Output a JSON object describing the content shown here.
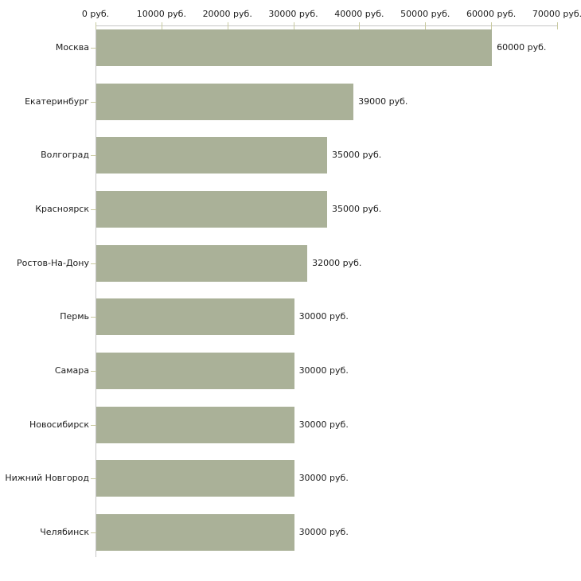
{
  "chart_data": {
    "type": "bar",
    "orientation": "horizontal",
    "title": "",
    "xlabel": "",
    "ylabel": "",
    "unit": "руб.",
    "categories": [
      "Москва",
      "Екатеринбург",
      "Волгоград",
      "Красноярск",
      "Ростов-На-Дону",
      "Пермь",
      "Самара",
      "Новосибирск",
      "Нижний Новгород",
      "Челябинск"
    ],
    "values": [
      60000,
      39000,
      35000,
      35000,
      32000,
      30000,
      30000,
      30000,
      30000,
      30000
    ],
    "value_labels": [
      "60000 руб.",
      "39000 руб.",
      "35000 руб.",
      "35000 руб.",
      "32000 руб.",
      "30000 руб.",
      "30000 руб.",
      "30000 руб.",
      "30000 руб.",
      "30000 руб."
    ],
    "xlim": [
      0,
      70000
    ],
    "x_ticks": [
      0,
      10000,
      20000,
      30000,
      40000,
      50000,
      60000,
      70000
    ],
    "x_tick_labels": [
      "0 руб.",
      "10000 руб.",
      "20000 руб.",
      "30000 руб.",
      "40000 руб.",
      "50000 руб.",
      "60000 руб.",
      "70000 руб."
    ],
    "grid": false,
    "legend": "none",
    "axis_position": "top",
    "colors": {
      "bar": "#aab198",
      "axis_line": "#c6c6c6",
      "tick_mark": "#c9caa0",
      "text": "#1c1c1c",
      "background": "#ffffff"
    }
  }
}
